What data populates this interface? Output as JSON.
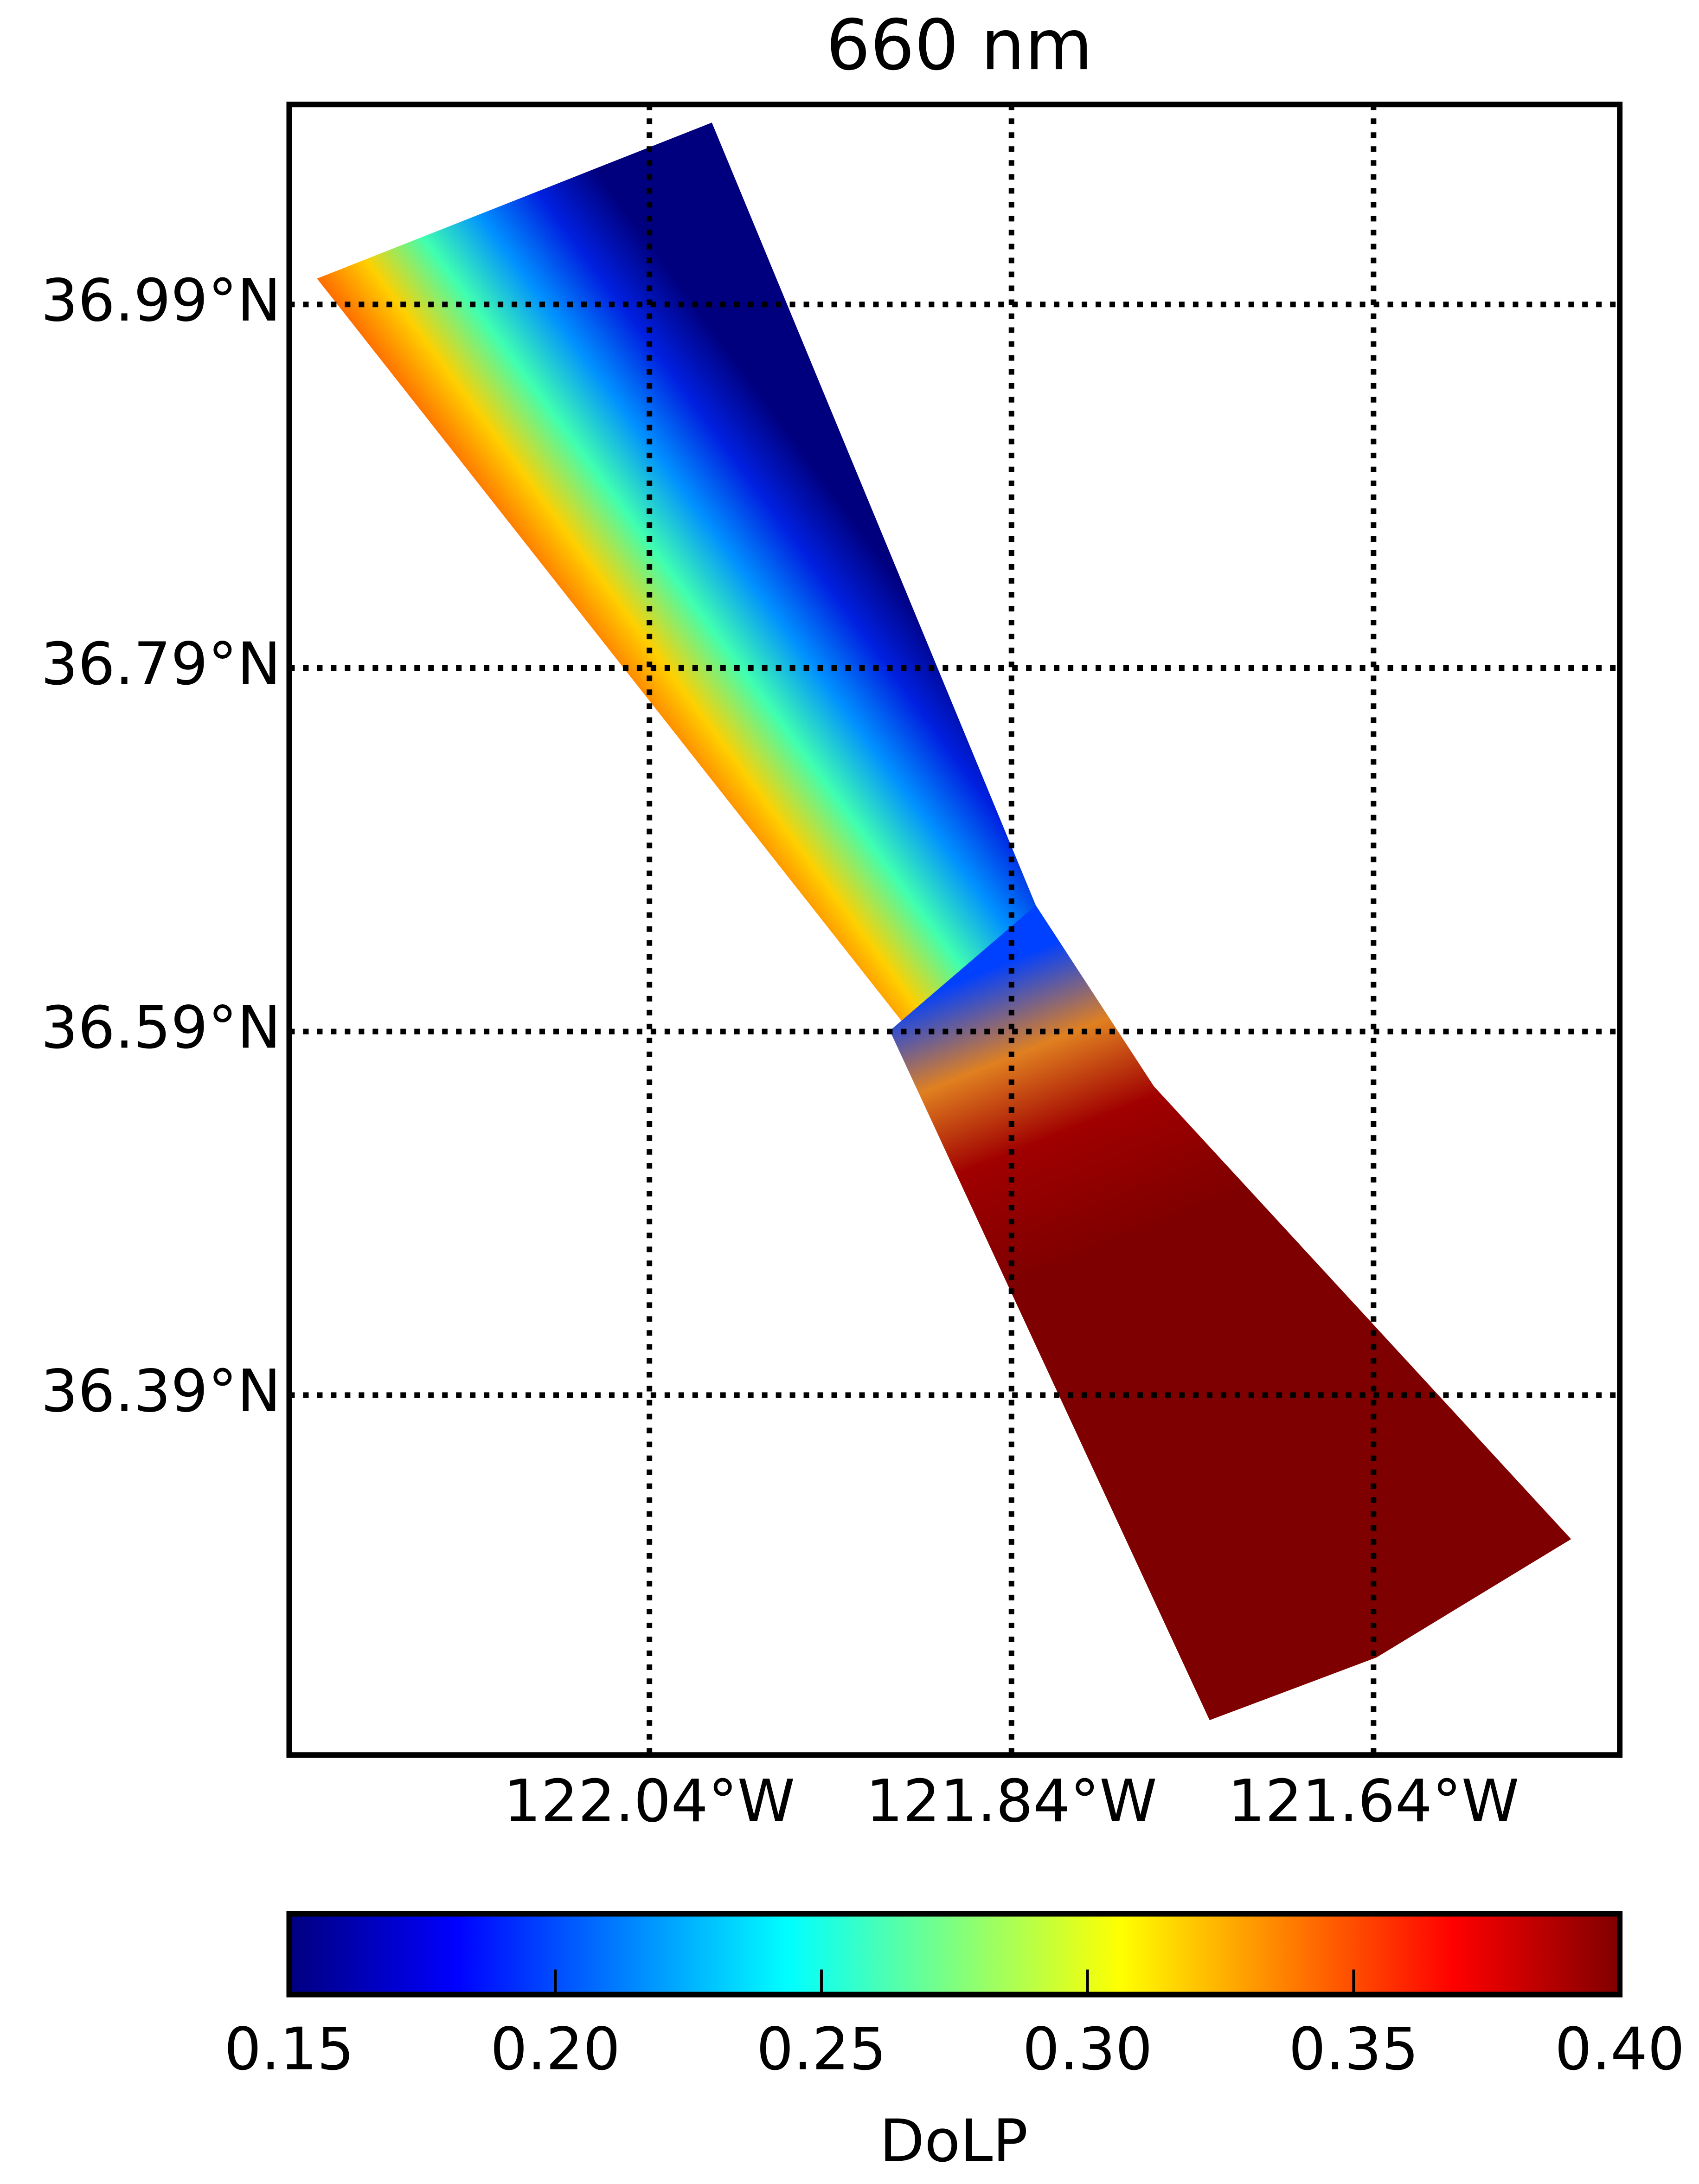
{
  "chart_data": {
    "type": "map",
    "title": "660 nm",
    "xlim": [
      -122.239,
      -121.504
    ],
    "ylim": [
      36.192,
      37.1
    ],
    "xticks": [
      {
        "value": -122.04,
        "label": "122.04°W"
      },
      {
        "value": -121.84,
        "label": "121.84°W"
      },
      {
        "value": -121.64,
        "label": "121.64°W"
      }
    ],
    "yticks": [
      {
        "value": 36.99,
        "label": "36.99°N"
      },
      {
        "value": 36.79,
        "label": "36.79°N"
      },
      {
        "value": 36.59,
        "label": "36.59°N"
      },
      {
        "value": 36.39,
        "label": "36.39°N"
      }
    ],
    "grid": true,
    "colorbar": {
      "label": "DoLP",
      "lim": [
        0.15,
        0.4
      ],
      "ticks": [
        0.15,
        {
          "value": 0.2,
          "label": "0.20"
        },
        0.25,
        {
          "value": 0.3,
          "label": "0.30"
        },
        0.35,
        {
          "value": 0.4,
          "label": "0.40"
        }
      ],
      "colors": [
        "#00007f",
        "#0000ff",
        "#007fff",
        "#00ffff",
        "#7fff7f",
        "#ffff00",
        "#ff7f00",
        "#ff0000",
        "#7f0000"
      ]
    }
  }
}
